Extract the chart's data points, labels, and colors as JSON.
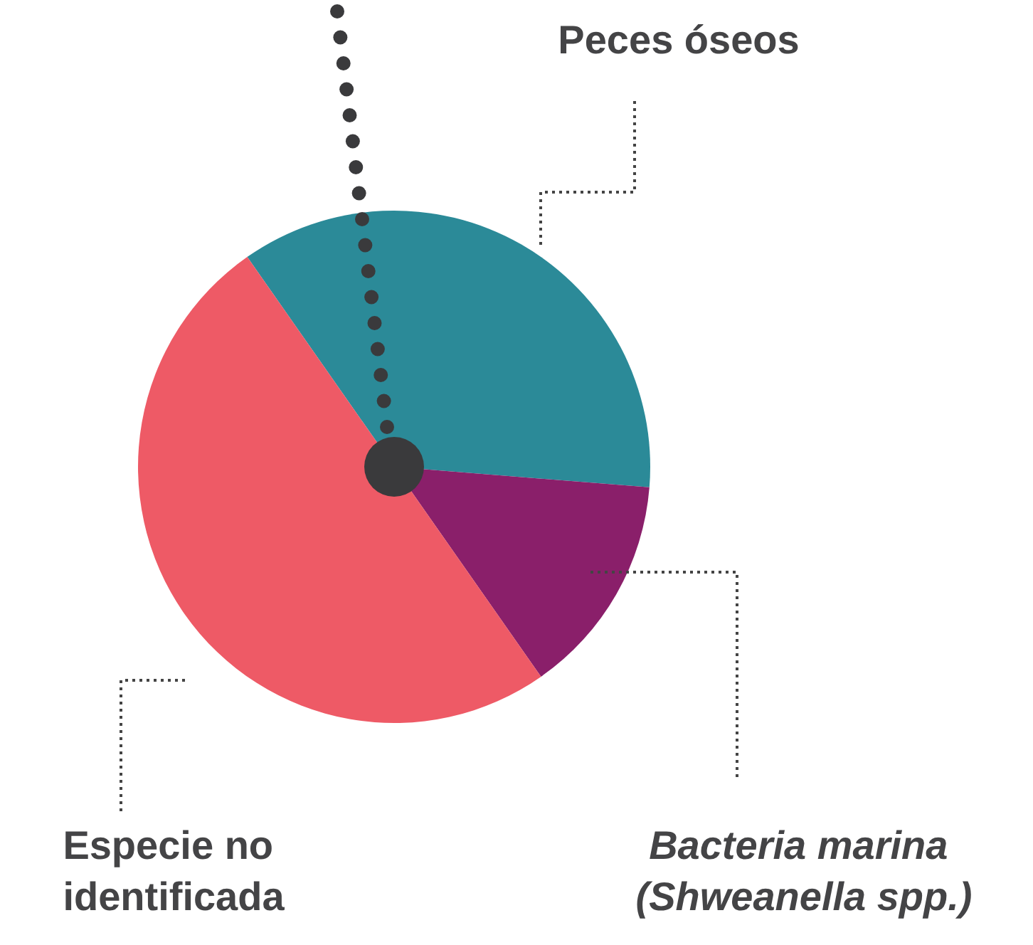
{
  "chart_data": {
    "type": "pie",
    "categories": [
      "Peces óseos",
      "Bacteria marina (Shweanella spp.)",
      "Especie no identificada"
    ],
    "values": [
      36,
      14,
      50
    ],
    "colors": [
      "#2b8a98",
      "#8a1f6a",
      "#ee5a66"
    ]
  }
}
